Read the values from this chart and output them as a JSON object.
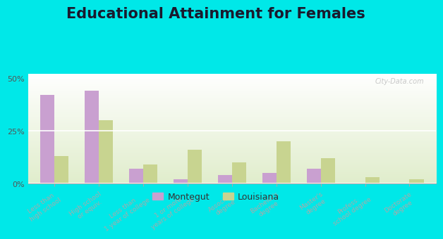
{
  "title": "Educational Attainment for Females",
  "categories": [
    "Less than\nhigh school",
    "High school\nor equiv.",
    "Less than\n1 year of college",
    "1 or more\nyears of college",
    "Associate\ndegree",
    "Bachelor's\ndegree",
    "Master's\ndegree",
    "Profess.\nschool degree",
    "Doctorate\ndegree"
  ],
  "montegut": [
    42,
    44,
    7,
    2,
    4,
    5,
    7,
    0,
    0
  ],
  "louisiana": [
    13,
    30,
    9,
    16,
    10,
    20,
    12,
    3,
    2
  ],
  "montegut_color": "#c9a0d0",
  "louisiana_color": "#c8d490",
  "outer_background": "#00e8e8",
  "title_fontsize": 15,
  "tick_label_fontsize": 6.5,
  "legend_fontsize": 9,
  "ylim": [
    0,
    52
  ],
  "yticks": [
    0,
    25,
    50
  ],
  "ytick_labels": [
    "0%",
    "25%",
    "50%"
  ]
}
